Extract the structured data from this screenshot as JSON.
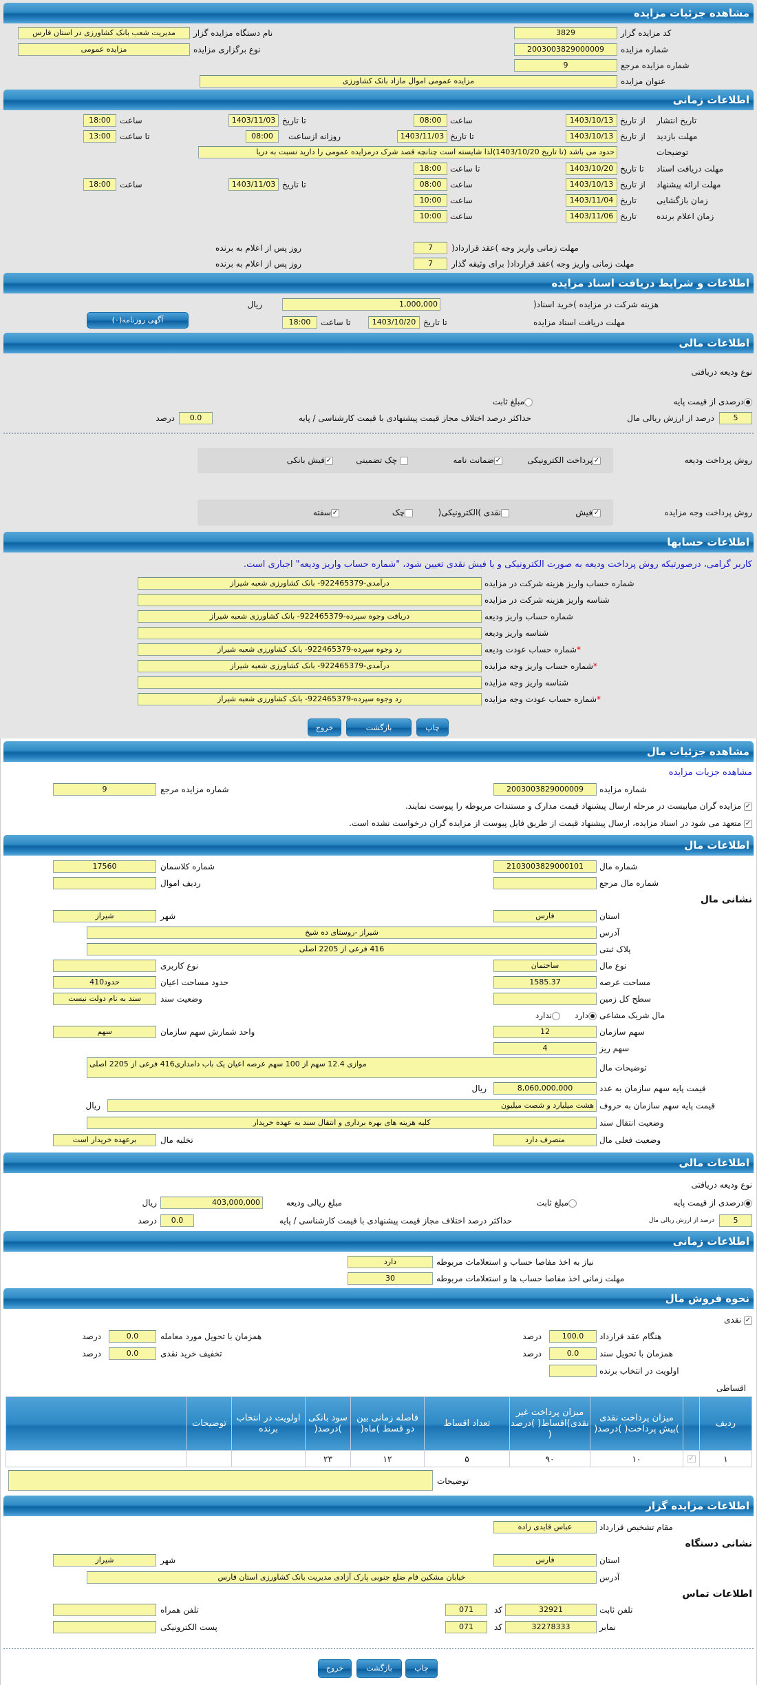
{
  "s1": {
    "title": "مشاهده جزئیات مزایده",
    "code_l": "کد مزایده گزار",
    "code": "3829",
    "org_l": "نام دستگاه مزایده گزار",
    "org": "مدیریت شعب بانک کشاورزی در استان فارس",
    "num_l": "شماره مزایده",
    "num": "2003003829000009",
    "type_l": "نوع برگزاری مزایده",
    "type": "مزایده عمومی",
    "ref_l": "شماره مزایده مرجع",
    "ref": "9",
    "subj_l": "عنوان مزایده",
    "subj": "مزایده عمومی اموال مازاد بانک کشاورزی"
  },
  "s2": {
    "title": "اطلاعات زمانی",
    "from_date": "از تاریخ",
    "to_date": "تا تاریخ",
    "date": "تاریخ",
    "hour": "ساعت",
    "to_hour": "تا ساعت",
    "daily_from": "روزانه ازساعت",
    "pub_l": "تاریخ انتشار",
    "pub_from": "1403/10/13",
    "pub_from_h": "08:00",
    "pub_to": "1403/11/03",
    "pub_to_h": "18:00",
    "visit_l": "مهلت بازدید",
    "visit_from": "1403/10/13",
    "visit_to": "1403/11/03",
    "visit_h_from": "08:00",
    "visit_h_to": "13:00",
    "desc_l": "توضیحات",
    "desc": "حدود می باشد (تا تاریخ 1403/10/20)لذا شایسته است چنانچه قصد شرک درمزایده عمومی را دارید نسبت به دریا",
    "docs_l": "مهلت دریافت اسناد",
    "docs_to": "1403/10/20",
    "docs_h": "18:00",
    "bid_l": "مهلت ارائه پیشنهاد",
    "bid_from": "1403/10/13",
    "bid_from_h": "08:00",
    "bid_to": "1403/11/03",
    "bid_to_h": "18:00",
    "open_l": "زمان بازگشایی",
    "open": "1403/11/04",
    "open_h": "10:00",
    "win_l": "زمان اعلام برنده",
    "win": "1403/11/06",
    "win_h": "10:00",
    "pay1_l": "مهلت زمانی واریز وجه )عقد قرارداد(",
    "pay1": "7",
    "pay_suffix": "روز پس از اعلام به برنده",
    "pay2_l": "مهلت زمانی واریز وجه )عقد قرارداد( برای وثیقه گذار",
    "pay2": "7"
  },
  "s3": {
    "title": "اطلاعات و شرایط دریافت اسناد مزایده",
    "fee_l": "هزینه شرکت در مزایده )خرید اسناد(",
    "fee": "1,000,000",
    "rial": "ریال",
    "dl_l": "مهلت دریافت اسناد مزایده",
    "to_date": "تا تاریخ",
    "dl_date": "1403/10/20",
    "to_hour": "تا ساعت",
    "dl_h": "18:00",
    "ad_button": "آگهی روزنامه(۰)"
  },
  "s4": {
    "title": "اطلاعات مالی",
    "dep_type": "نوع ودیعه دریافتی",
    "opt_percent": "درصدی از قیمت پایه",
    "opt_fixed": "مبلغ ثابت",
    "pct": "5",
    "pct_l": "درصد از ارزش ریالی مال",
    "max_l": "حداکثر درصد اختلاف مجاز قیمت پیشنهادی با قیمت کارشناسی / پایه",
    "max": "0.0",
    "percent": "درصد",
    "dep_method_l": "روش پرداخت ودیعه",
    "dep_methods": [
      {
        "label": "پرداخت الکترونیکی",
        "checked": true
      },
      {
        "label": "ضمانت نامه",
        "checked": true
      },
      {
        "label": "چک تضمینی",
        "checked": false
      },
      {
        "label": "فیش بانکی",
        "checked": true
      }
    ],
    "pay_method_l": "روش پرداخت وجه مزایده",
    "pay_methods": [
      {
        "label": "فیش",
        "checked": true
      },
      {
        "label": "نقدی )الکترونیکی(",
        "checked": false
      },
      {
        "label": "چک",
        "checked": false
      },
      {
        "label": "سفته",
        "checked": true
      }
    ]
  },
  "s5": {
    "title": "اطلاعات حسابها",
    "note": "کاربر گرامی، درصورتیکه روش پرداخت ودیعه به صورت الکترونیکی و یا فیش نقدی تعیین شود، \"شماره حساب واریز ودیعه\" اجباری است.",
    "rows": [
      {
        "label": "شماره حساب واریز هزینه شرکت در مزایده",
        "value": "درآمدی-922465379- بانک کشاورزی شعبه شیراز"
      },
      {
        "label": "شناسه واریز هزینه شرکت در مزایده",
        "value": ""
      },
      {
        "label": "شماره حساب واریز ودیعه",
        "value": "دریافت وجوه سپرده-922465379- بانک کشاورزی شعبه شیراز"
      },
      {
        "label": "شناسه واریز ودیعه",
        "value": ""
      },
      {
        "label": "شماره حساب عودت ودیعه",
        "value": "رد وجوه سپرده-922465379- بانک کشاورزی شعبه شیراز"
      },
      {
        "label": "شماره حساب واریز وجه مزایده",
        "value": "درآمدی-922465379- بانک کشاورزی شعبه شیراز"
      },
      {
        "label": "شناسه واریز وجه مزایده",
        "value": ""
      },
      {
        "label": "شماره حساب عودت وجه مزایده",
        "value": "رد وجوه سپرده-922465379- بانک کشاورزی شعبه شیراز"
      }
    ],
    "required": "*"
  },
  "buttons": {
    "print": "چاپ",
    "back": "بازگشت",
    "exit": "خروج"
  },
  "s6": {
    "title": "مشاهده جزئیات مال",
    "link": "مشاهده جزیات مزایده",
    "num_l": "شماره مزایده",
    "num": "2003003829000009",
    "ref_l": "شماره مزایده مرجع",
    "ref": "9",
    "chk1": "مزایده گران میابیست در مرحله ارسال پیشنهاد قیمت مدارک و مستندات مربوطه را پیوست نمایند.",
    "chk2": "متعهد می شود در اسناد مزایده، ارسال پیشنهاد قیمت از طریق فایل پیوست از مزایده گران درخواست نشده است."
  },
  "s7": {
    "title": "اطلاعات مال",
    "item_l": "شماره مال",
    "item": "2103003829000101",
    "class_l": "شماره کلاسمان",
    "class": "17560",
    "itemref_l": "شماره مال مرجع",
    "itemref": "",
    "row_l": "ردیف اموال",
    "row": "",
    "addr_title": "نشانی مال",
    "prov_l": "استان",
    "prov": "فارس",
    "city_l": "شهر",
    "city": "شیراز",
    "addr_l": "آدرس",
    "addr": "شیراز -روستای ده شیخ",
    "plate_l": "پلاک ثبتی",
    "plate": "416 فرعی از 2205 اصلی",
    "kind_l": "نوع مال",
    "kind": "ساختمان",
    "use_l": "نوع کاربری",
    "use": "",
    "area_l": "مساحت عرصه",
    "area": "1585.37",
    "build_l": "حدود مساحت اعیان",
    "build": "حدود410",
    "land_l": "سطح کل زمین",
    "land": "",
    "deed_l": "وضعیت سند",
    "deed": "سند به نام دولت نیست",
    "share_l": "مال شریک مشاعی",
    "yes": "دارد",
    "no": "ندارد",
    "orgshare_l": "سهم سازمان",
    "orgshare": "12",
    "unit_l": "واحد شمارش سهم سازمان",
    "unit": "سهم",
    "small_l": "سهم ریز",
    "small": "4",
    "desc_l": "توضیحات مال",
    "desc": "موازی 12.4 سهم از 100 سهم عرصه اعیان یک باب دامداری416 فرعی از 2205 اصلی",
    "price_l": "قیمت پایه سهم سازمان به عدد",
    "price": "8,060,000,000",
    "rial": "ریال",
    "words_l": "قیمت پایه سهم سازمان به حروف",
    "words": "هشت میلیارد و شصت میلیون",
    "transfer_l": "وضعیت انتقال سند",
    "transfer": "کلیه هزینه های بهره برداری و انتقال سند به عهده خریدار",
    "status_l": "وضعیت فعلی مال",
    "status": "متصرف دارد",
    "evac_l": "تخلیه مال",
    "evac": "برعهده خریدار است"
  },
  "s8": {
    "title": "اطلاعات مالی",
    "dep_type": "نوع ودیعه دریافتی",
    "opt_percent": "درصدی از قیمت پایه",
    "opt_fixed": "مبلغ ثابت",
    "amount_l": "مبلغ ریالی ودیعه",
    "amount": "403,000,000",
    "rial": "ریال",
    "pct": "5",
    "pct_l": "درصد از ارزش ریالی مال",
    "max_l": "حداکثر درصد اختلاف مجاز قیمت پیشنهادی با قیمت کارشناسی / پایه",
    "max": "0.0",
    "percent": "درصد"
  },
  "s9": {
    "title": "اطلاعات زمانی",
    "need_l": "نیاز به اخذ مفاصا حساب و استعلامات مربوطه",
    "need": "دارد",
    "time_l": "مهلت زمانی اخذ مفاصا حساب ها و استعلامات مربوطه",
    "time": "30"
  },
  "s10": {
    "title": "نحوه فروش مال",
    "cash": "نقدی",
    "percent": "درصد",
    "contract_l": "هنگام عقد قرارداد",
    "contract": "100.0",
    "deliver_l": "همزمان با تحویل مورد معامله",
    "deliver": "0.0",
    "deed_l": "همزمان با تحویل سند",
    "deed": "0.0",
    "discount_l": "تخفیف خرید نقدی",
    "discount": "0.0",
    "priority_l": "اولویت در انتخاب برنده",
    "priority": "",
    "inst": "اقساطی",
    "columns": [
      "ردیف",
      "",
      "میزان پرداخت نقدی )پیش پرداخت( )درصد(",
      "میزان پرداخت غیر نقدی)اقساط( )درصد (",
      "تعداد اقساط",
      "فاصله زمانی بین دو قسط )ماه(",
      "سود بانکی )درصد(",
      "اولویت در انتخاب برنده",
      "توضیحات",
      ""
    ],
    "rows": [
      [
        "۱",
        "",
        "۱۰",
        "۹۰",
        "۵",
        "۱۲",
        "۲۳",
        "",
        "",
        ""
      ]
    ],
    "notes_l": "توضیحات",
    "notes": ""
  },
  "s11": {
    "title": "اطلاعات مزایده گزار",
    "auth_l": "مقام تشخیص قرارداد",
    "auth": "عباس قایدی زاده",
    "addr_title": "نشانی دستگاه",
    "prov_l": "استان",
    "prov": "فارس",
    "city_l": "شهر",
    "city": "شیراز",
    "addr_l": "آدرس",
    "addr": "خیابان مشکین فام ضلع جنوبی پارک آزادی مدیریت بانک کشاورزی استان فارس",
    "contact_title": "اطلاعات تماس",
    "phone_l": "تلفن ثابت",
    "phone": "32921",
    "code_l": "کد",
    "phone_code": "071",
    "mobile_l": "تلفن همراه",
    "mobile": "",
    "fax_l": "نمابر",
    "fax": "32278333",
    "fax_code": "071",
    "email_l": "پست الکترونیکی",
    "email": ""
  }
}
